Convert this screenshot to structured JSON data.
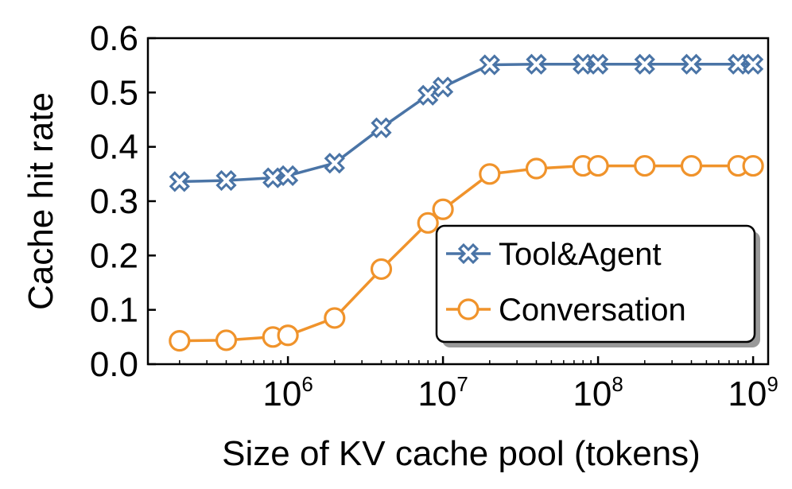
{
  "chart_data": {
    "type": "line",
    "title": "",
    "xlabel": "Size of KV cache pool (tokens)",
    "ylabel": "Cache hit rate",
    "xscale": "log",
    "xlim": [
      125000,
      1250000000
    ],
    "ylim": [
      0.0,
      0.6
    ],
    "yticks": [
      0.0,
      0.1,
      0.2,
      0.3,
      0.4,
      0.5,
      0.6
    ],
    "ytick_labels": [
      "0.0",
      "0.1",
      "0.2",
      "0.3",
      "0.4",
      "0.5",
      "0.6"
    ],
    "xticks": [
      {
        "value": 1000000,
        "base": "10",
        "exp": "6"
      },
      {
        "value": 10000000,
        "base": "10",
        "exp": "7"
      },
      {
        "value": 100000000,
        "base": "10",
        "exp": "8"
      },
      {
        "value": 1000000000,
        "base": "10",
        "exp": "9"
      }
    ],
    "legend_position": "lower-right",
    "series": [
      {
        "name": "Tool&Agent",
        "color": "#4a74a6",
        "marker": "x-cross",
        "x": [
          200000,
          400000,
          800000,
          1000000,
          2000000,
          4000000,
          8000000,
          10000000,
          20000000,
          40000000,
          80000000,
          100000000,
          200000000,
          400000000,
          800000000,
          1000000000
        ],
        "y": [
          0.336,
          0.338,
          0.343,
          0.347,
          0.37,
          0.435,
          0.495,
          0.51,
          0.551,
          0.552,
          0.552,
          0.552,
          0.552,
          0.552,
          0.552,
          0.552
        ]
      },
      {
        "name": "Conversation",
        "color": "#f0932b",
        "marker": "circle",
        "x": [
          200000,
          400000,
          800000,
          1000000,
          2000000,
          4000000,
          8000000,
          10000000,
          20000000,
          40000000,
          80000000,
          100000000,
          200000000,
          400000000,
          800000000,
          1000000000
        ],
        "y": [
          0.043,
          0.044,
          0.05,
          0.053,
          0.085,
          0.175,
          0.26,
          0.285,
          0.35,
          0.36,
          0.365,
          0.365,
          0.365,
          0.365,
          0.365,
          0.365
        ]
      }
    ]
  }
}
